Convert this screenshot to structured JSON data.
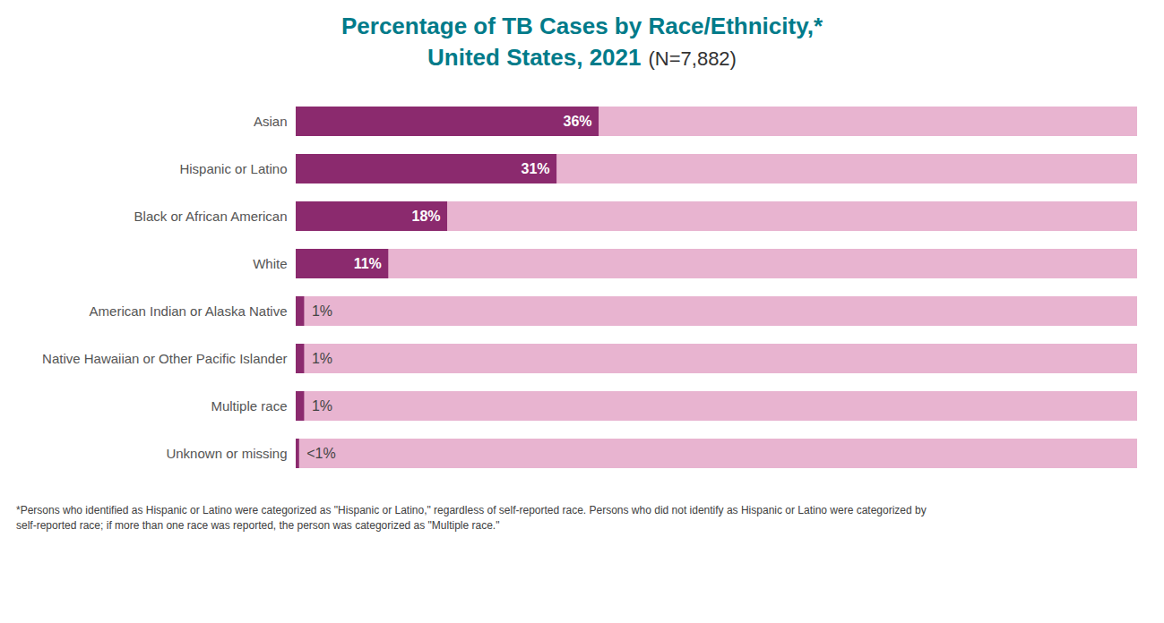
{
  "chart_data": {
    "type": "bar",
    "orientation": "horizontal",
    "title": "Percentage of TB Cases by Race/Ethnicity,*",
    "subtitle": "United States, 2021",
    "annotations": [
      "(N=7,882)",
      "*Persons who identified as Hispanic or Latino were categorized as \"Hispanic or Latino,\" regardless of self-reported race. Persons who did not identify as Hispanic or Latino were categorized by\nself-reported race; if more than one race was reported, the person was categorized as \"Multiple race.\""
    ],
    "categories": [
      "Asian",
      "Hispanic or Latino",
      "Black or African American",
      "White",
      "American Indian or Alaska Native",
      "Native Hawaiian or Other Pacific Islander",
      "Multiple race",
      "Unknown or missing"
    ],
    "values": [
      36,
      31,
      18,
      11,
      1,
      1,
      1,
      0.4
    ],
    "value_labels": [
      "36%",
      "31%",
      "18%",
      "11%",
      "1%",
      "1%",
      "1%",
      "<1%"
    ],
    "data_labels": true,
    "color": "#8B2A6E",
    "xlim": [
      0,
      100
    ],
    "tick_labels": "y",
    "grid": false
  }
}
